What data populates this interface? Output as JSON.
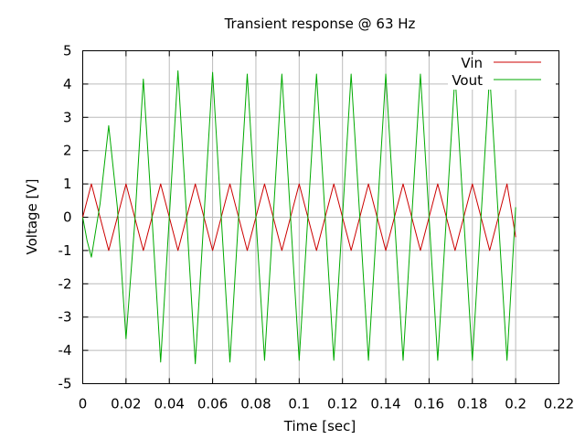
{
  "chart_data": {
    "type": "line",
    "title": "Transient response @ 63 Hz",
    "xlabel": "Time [sec]",
    "ylabel": "Voltage [V]",
    "xlim": [
      0,
      0.22
    ],
    "ylim": [
      -5,
      5
    ],
    "x_ticks": [
      0,
      0.02,
      0.04,
      0.06,
      0.08,
      0.1,
      0.12,
      0.14,
      0.16,
      0.18,
      0.2,
      0.22
    ],
    "x_tick_labels": [
      "0",
      "0.02",
      "0.04",
      "0.06",
      "0.08",
      "0.1",
      "0.12",
      "0.14",
      "0.16",
      "0.18",
      "0.2",
      "0.22"
    ],
    "y_ticks": [
      -5,
      -4,
      -3,
      -2,
      -1,
      0,
      1,
      2,
      3,
      4,
      5
    ],
    "y_tick_labels": [
      "-5",
      "-4",
      "-3",
      "-2",
      "-1",
      "0",
      "1",
      "2",
      "3",
      "4",
      "5"
    ],
    "grid": true,
    "legend_position": "top-right",
    "series": [
      {
        "name": "Vin",
        "color": "#cc0000",
        "x": [
          0,
          0.004,
          0.008,
          0.012,
          0.016,
          0.02,
          0.024,
          0.028,
          0.032,
          0.036,
          0.04,
          0.044,
          0.048,
          0.052,
          0.056,
          0.06,
          0.064,
          0.068,
          0.072,
          0.076,
          0.08,
          0.084,
          0.088,
          0.092,
          0.096,
          0.1,
          0.104,
          0.108,
          0.112,
          0.116,
          0.12,
          0.124,
          0.128,
          0.132,
          0.136,
          0.14,
          0.144,
          0.148,
          0.152,
          0.156,
          0.16,
          0.164,
          0.168,
          0.172,
          0.176,
          0.18,
          0.184,
          0.188,
          0.192,
          0.196,
          0.2
        ],
        "y": [
          0,
          1.0,
          0.0,
          -1.0,
          0.0,
          1.0,
          0.0,
          -1.0,
          0.0,
          1.0,
          0.0,
          -1.0,
          0.0,
          1.0,
          0.0,
          -1.0,
          0.0,
          1.0,
          0.0,
          -1.0,
          0.0,
          1.0,
          0.0,
          -1.0,
          0.0,
          1.0,
          0.0,
          -1.0,
          0.0,
          1.0,
          0.0,
          -1.0,
          0.0,
          1.0,
          0.0,
          -1.0,
          0.0,
          1.0,
          0.0,
          -1.0,
          0.0,
          1.0,
          0.0,
          -1.0,
          0.0,
          1.0,
          0.0,
          -1.0,
          0.0,
          1.0,
          -0.6
        ]
      },
      {
        "name": "Vout",
        "color": "#00aa00",
        "x": [
          0,
          0.002,
          0.004,
          0.008,
          0.012,
          0.016,
          0.02,
          0.024,
          0.028,
          0.032,
          0.036,
          0.04,
          0.044,
          0.048,
          0.052,
          0.056,
          0.06,
          0.064,
          0.068,
          0.072,
          0.076,
          0.08,
          0.084,
          0.088,
          0.092,
          0.096,
          0.1,
          0.104,
          0.108,
          0.112,
          0.116,
          0.12,
          0.124,
          0.128,
          0.132,
          0.136,
          0.14,
          0.144,
          0.148,
          0.152,
          0.156,
          0.16,
          0.164,
          0.168,
          0.172,
          0.176,
          0.18,
          0.184,
          0.188,
          0.192,
          0.196,
          0.2
        ],
        "y": [
          0,
          -0.7,
          -1.2,
          0.4,
          2.75,
          0.3,
          -3.65,
          -0.2,
          4.15,
          0.0,
          -4.35,
          0.0,
          4.4,
          0.0,
          -4.4,
          0.0,
          4.35,
          0.0,
          -4.35,
          0.0,
          4.3,
          0.0,
          -4.3,
          0.0,
          4.3,
          0.0,
          -4.3,
          0.0,
          4.3,
          0.0,
          -4.3,
          0.0,
          4.3,
          0.0,
          -4.3,
          0.0,
          4.3,
          0.0,
          -4.3,
          0.0,
          4.3,
          0.0,
          -4.3,
          0.0,
          4.3,
          0.0,
          -4.3,
          0.0,
          4.3,
          0.0,
          -4.3,
          0.3
        ]
      }
    ]
  }
}
